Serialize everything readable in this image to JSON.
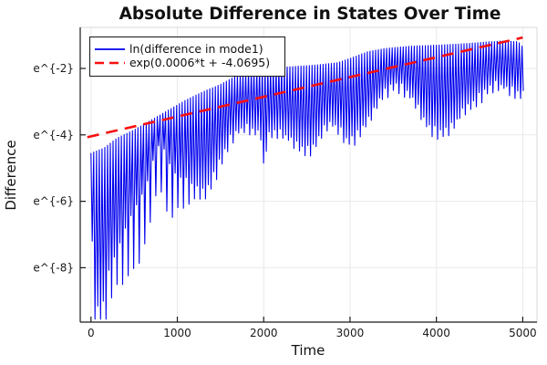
{
  "window": {
    "kind": "plot-figure",
    "background": "#ffffff"
  },
  "chart_data": {
    "type": "line",
    "title": "Absolute Difference in States Over Time",
    "xlabel": "Time",
    "ylabel": "Difference",
    "x_range": [
      0,
      5000
    ],
    "y_scale": "natural-log",
    "y_ln_visible_range": [
      -9.6,
      -0.78
    ],
    "grid": true,
    "legend_position": "top-left",
    "x_ticks": {
      "values": [
        0,
        1000,
        2000,
        3000,
        4000,
        5000
      ],
      "labels": [
        "0",
        "1000",
        "2000",
        "3000",
        "4000",
        "5000"
      ]
    },
    "y_ticks": {
      "ln_values": [
        -2,
        -4,
        -6,
        -8
      ],
      "labels": [
        "e^{-2}",
        "e^{-4}",
        "e^{-6}",
        "e^{-8}"
      ]
    },
    "colors": {
      "signal": "#0000ee",
      "fit": "#f80f0f",
      "grid": "#e9e9e9",
      "spine": "#1a1a1a",
      "frame_light": "#d9d9d9"
    },
    "series": [
      {
        "name": "ln(difference in mode1)",
        "color": "#0000ee",
        "style": "solid",
        "kind": "oscillatory-log-difference",
        "oscillation_period_t": 32,
        "upper_envelope_ln": [
          [
            0,
            -4.55
          ],
          [
            150,
            -4.4
          ],
          [
            300,
            -4.1
          ],
          [
            500,
            -3.85
          ],
          [
            700,
            -3.55
          ],
          [
            900,
            -3.25
          ],
          [
            1100,
            -2.95
          ],
          [
            1300,
            -2.7
          ],
          [
            1500,
            -2.48
          ],
          [
            1700,
            -2.2
          ],
          [
            1900,
            -2.05
          ],
          [
            2100,
            -1.98
          ],
          [
            2300,
            -1.95
          ],
          [
            2600,
            -1.9
          ],
          [
            2850,
            -1.83
          ],
          [
            3000,
            -1.7
          ],
          [
            3200,
            -1.5
          ],
          [
            3400,
            -1.4
          ],
          [
            3700,
            -1.33
          ],
          [
            4000,
            -1.3
          ],
          [
            4300,
            -1.26
          ],
          [
            4600,
            -1.2
          ],
          [
            4800,
            -1.17
          ],
          [
            4950,
            -1.2
          ],
          [
            5000,
            -1.35
          ]
        ],
        "lower_envelope_ln": [
          [
            0,
            -7.2
          ],
          [
            60,
            -9.0
          ],
          [
            100,
            -9.45
          ],
          [
            160,
            -8.3
          ],
          [
            250,
            -7.6
          ],
          [
            350,
            -7.0
          ],
          [
            450,
            -6.3
          ],
          [
            550,
            -5.9
          ],
          [
            650,
            -5.2
          ],
          [
            720,
            -4.6
          ],
          [
            780,
            -4.15
          ],
          [
            830,
            -4.3
          ],
          [
            900,
            -4.9
          ],
          [
            1000,
            -5.15
          ],
          [
            1150,
            -5.35
          ],
          [
            1300,
            -5.6
          ],
          [
            1400,
            -5.1
          ],
          [
            1500,
            -4.5
          ],
          [
            1600,
            -3.95
          ],
          [
            1700,
            -3.7
          ],
          [
            1800,
            -3.65
          ],
          [
            1900,
            -3.75
          ],
          [
            2050,
            -3.8
          ],
          [
            2150,
            -3.75
          ],
          [
            2250,
            -3.9
          ],
          [
            2350,
            -4.1
          ],
          [
            2480,
            -4.3
          ],
          [
            2560,
            -4.2
          ],
          [
            2650,
            -3.8
          ],
          [
            2750,
            -3.5
          ],
          [
            2850,
            -3.65
          ],
          [
            2950,
            -4.0
          ],
          [
            3050,
            -3.9
          ],
          [
            3150,
            -3.55
          ],
          [
            3250,
            -3.2
          ],
          [
            3350,
            -2.65
          ],
          [
            3500,
            -2.3
          ],
          [
            3600,
            -2.45
          ],
          [
            3700,
            -2.7
          ],
          [
            3800,
            -3.2
          ],
          [
            3900,
            -3.6
          ],
          [
            4000,
            -3.75
          ],
          [
            4100,
            -3.7
          ],
          [
            4200,
            -3.5
          ],
          [
            4300,
            -3.1
          ],
          [
            4400,
            -2.9
          ],
          [
            4500,
            -2.65
          ],
          [
            4600,
            -2.4
          ],
          [
            4700,
            -2.35
          ],
          [
            4800,
            -2.45
          ],
          [
            4900,
            -2.55
          ],
          [
            5000,
            -2.6
          ]
        ],
        "alt_spike_extra_ln": [
          [
            0,
            1.5
          ],
          [
            500,
            1.8
          ],
          [
            820,
            2.2
          ],
          [
            1000,
            1.0
          ],
          [
            1300,
            0.45
          ],
          [
            1600,
            0.3
          ],
          [
            2400,
            0.28
          ],
          [
            3500,
            0.3
          ],
          [
            5000,
            0.3
          ]
        ],
        "deep_spikes": [
          {
            "t": 1992,
            "ln": -4.85
          },
          {
            "t": 2026,
            "ln": -4.5
          }
        ]
      },
      {
        "name": "exp(0.0006*t + -4.0695)",
        "color": "#f80f0f",
        "style": "dashed",
        "fit_slope": 0.0006,
        "fit_intercept": -4.0695,
        "t_range": [
          0,
          5000
        ]
      }
    ]
  }
}
